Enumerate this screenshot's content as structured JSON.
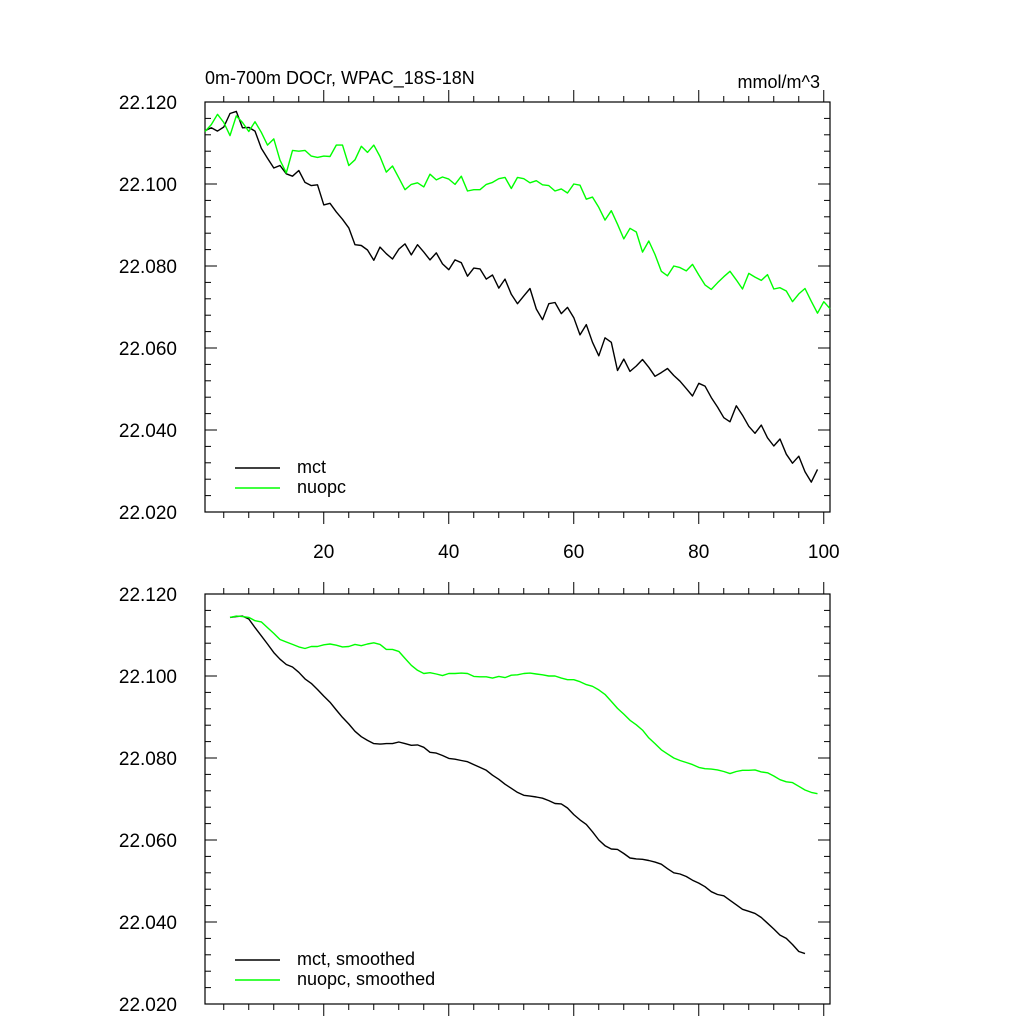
{
  "chart_data": [
    {
      "type": "line",
      "title": "0m-700m DOCr, WPAC_18S-18N",
      "units": "mmol/m^3",
      "xlim": [
        1,
        101
      ],
      "ylim": [
        22.02,
        22.12
      ],
      "xticks": [
        20,
        40,
        60,
        80,
        100
      ],
      "xtick_labels": [
        "20",
        "40",
        "60",
        "80",
        "100"
      ],
      "yticks": [
        22.02,
        22.04,
        22.06,
        22.08,
        22.1,
        22.12
      ],
      "ytick_labels": [
        "22.020",
        "22.040",
        "22.060",
        "22.080",
        "22.100",
        "22.120"
      ],
      "legend_position": "bottom-left",
      "series": [
        {
          "name": "mct",
          "color": "#000000",
          "x_start": 1,
          "values": [
            22.113,
            22.1137,
            22.1129,
            22.1139,
            22.1172,
            22.1177,
            22.1137,
            22.1138,
            22.1129,
            22.1087,
            22.1063,
            22.1039,
            22.1045,
            22.1025,
            22.1019,
            22.1033,
            22.1004,
            22.0996,
            22.0998,
            22.0949,
            22.0953,
            22.0932,
            22.0914,
            22.0893,
            22.0852,
            22.085,
            22.0839,
            22.0814,
            22.0846,
            22.083,
            22.0817,
            22.0841,
            22.0854,
            22.0827,
            22.0852,
            22.0834,
            22.0815,
            22.0832,
            22.0805,
            22.0791,
            22.0815,
            22.0808,
            22.0775,
            22.0795,
            22.0793,
            22.0768,
            22.0778,
            22.0746,
            22.0768,
            22.0731,
            22.0708,
            22.0727,
            22.0745,
            22.0695,
            22.0669,
            22.0708,
            22.0711,
            22.0684,
            22.0699,
            22.0674,
            22.0632,
            22.0657,
            22.0614,
            22.0581,
            22.0625,
            22.0614,
            22.0545,
            22.0573,
            22.0543,
            22.0556,
            22.0572,
            22.0553,
            22.0531,
            22.054,
            22.055,
            22.0533,
            22.0519,
            22.0501,
            22.0483,
            22.0514,
            22.0507,
            22.0479,
            22.0456,
            22.043,
            22.042,
            22.0459,
            22.0436,
            22.0409,
            22.0392,
            22.0412,
            22.0381,
            22.0361,
            22.0378,
            22.0341,
            22.0319,
            22.0336,
            22.0298,
            22.0273,
            22.0304
          ]
        },
        {
          "name": "nuopc",
          "color": "#00ff00",
          "x_start": 1,
          "values": [
            22.1128,
            22.1145,
            22.117,
            22.115,
            22.1118,
            22.1166,
            22.115,
            22.1128,
            22.1152,
            22.1126,
            22.1095,
            22.111,
            22.1058,
            22.1027,
            22.1082,
            22.108,
            22.1082,
            22.1068,
            22.1065,
            22.1068,
            22.1067,
            22.1095,
            22.1095,
            22.1045,
            22.1059,
            22.1092,
            22.1077,
            22.1095,
            22.1067,
            22.1029,
            22.1044,
            22.1015,
            22.0986,
            22.0999,
            22.1003,
            22.0993,
            22.1024,
            22.101,
            22.1017,
            22.1012,
            22.0999,
            22.1019,
            22.0983,
            22.0986,
            22.0986,
            22.0999,
            22.1004,
            22.1013,
            22.1016,
            22.0989,
            22.1016,
            22.1013,
            22.1003,
            22.1008,
            22.0998,
            22.0996,
            22.0983,
            22.0988,
            22.0978,
            22.1,
            22.0997,
            22.0963,
            22.0968,
            22.0943,
            22.0912,
            22.0935,
            22.0902,
            22.0866,
            22.0892,
            22.0883,
            22.0834,
            22.0861,
            22.0828,
            22.0787,
            22.0776,
            22.08,
            22.0796,
            22.0788,
            22.0804,
            22.0778,
            22.0754,
            22.0743,
            22.0759,
            22.0774,
            22.0787,
            22.0766,
            22.0744,
            22.0782,
            22.0773,
            22.0765,
            22.0779,
            22.0744,
            22.0747,
            22.0739,
            22.0713,
            22.0732,
            22.0745,
            22.0714,
            22.0685,
            22.0713,
            22.0696
          ]
        }
      ]
    },
    {
      "type": "line",
      "title": "",
      "units": "",
      "xlim": [
        1,
        101
      ],
      "ylim": [
        22.02,
        22.12
      ],
      "xticks": [
        20,
        40,
        60,
        80,
        100
      ],
      "xtick_labels": [],
      "yticks": [
        22.02,
        22.04,
        22.06,
        22.08,
        22.1,
        22.12
      ],
      "ytick_labels": [
        "22.020",
        "22.040",
        "22.060",
        "22.080",
        "22.100",
        "22.120"
      ],
      "legend_position": "bottom-left",
      "series": [
        {
          "name": "mct, smoothed",
          "color": "#000000",
          "x_start": 5,
          "values": [
            22.1143,
            22.1145,
            22.1146,
            22.1139,
            22.1118,
            22.1098,
            22.1078,
            22.1057,
            22.1041,
            22.1028,
            22.1022,
            22.1009,
            22.0993,
            22.0982,
            22.0967,
            22.0951,
            22.0936,
            22.0917,
            22.0899,
            22.0883,
            22.0865,
            22.0852,
            22.0843,
            22.0835,
            22.0834,
            22.0835,
            22.0835,
            22.0839,
            22.0835,
            22.0831,
            22.0832,
            22.0826,
            22.0814,
            22.0812,
            22.0806,
            22.0799,
            22.0797,
            22.0794,
            22.0791,
            22.0784,
            22.0777,
            22.077,
            22.0758,
            22.0748,
            22.0736,
            22.0726,
            22.0716,
            22.0709,
            22.0707,
            22.0705,
            22.0702,
            22.0696,
            22.0689,
            22.0688,
            22.0678,
            22.0662,
            22.0649,
            22.0638,
            22.062,
            22.06,
            22.0586,
            22.0578,
            22.0577,
            22.0567,
            22.0556,
            22.0554,
            22.0553,
            22.055,
            22.0546,
            22.0541,
            22.053,
            22.052,
            22.0517,
            22.0511,
            22.0502,
            22.0495,
            22.0486,
            22.0474,
            22.0467,
            22.0464,
            22.0453,
            22.0442,
            22.0431,
            22.0426,
            22.0421,
            22.0411,
            22.0397,
            22.0383,
            22.0368,
            22.036,
            22.0345,
            22.0328,
            22.0323
          ]
        },
        {
          "name": "nuopc, smoothed",
          "color": "#00ff00",
          "x_start": 5,
          "values": [
            22.1143,
            22.1146,
            22.1145,
            22.1143,
            22.1135,
            22.1132,
            22.1118,
            22.1104,
            22.1089,
            22.1083,
            22.1077,
            22.1071,
            22.1067,
            22.1072,
            22.1072,
            22.1076,
            22.1078,
            22.1075,
            22.1071,
            22.1072,
            22.1077,
            22.1074,
            22.1078,
            22.1081,
            22.1077,
            22.1065,
            22.1065,
            22.106,
            22.1043,
            22.1026,
            22.1014,
            22.1006,
            22.1008,
            22.1005,
            22.1001,
            22.1006,
            22.1006,
            22.1007,
            22.1006,
            22.0999,
            22.0998,
            22.0998,
            22.0995,
            22.0999,
            22.0996,
            22.1002,
            22.1003,
            22.1006,
            22.1007,
            22.1005,
            22.1003,
            22.1,
            22.1,
            22.0995,
            22.0991,
            22.0991,
            22.0986,
            22.0979,
            22.0975,
            22.0966,
            22.0955,
            22.0938,
            22.0921,
            22.0907,
            22.0892,
            22.0881,
            22.0868,
            22.0849,
            22.0835,
            22.082,
            22.081,
            22.08,
            22.0794,
            22.0789,
            22.0784,
            22.0777,
            22.0774,
            22.0773,
            22.0771,
            22.0767,
            22.0762,
            22.0767,
            22.077,
            22.077,
            22.0771,
            22.0766,
            22.0764,
            22.0756,
            22.0747,
            22.0742,
            22.074,
            22.0731,
            22.0722,
            22.0716,
            22.0713
          ]
        }
      ]
    }
  ]
}
